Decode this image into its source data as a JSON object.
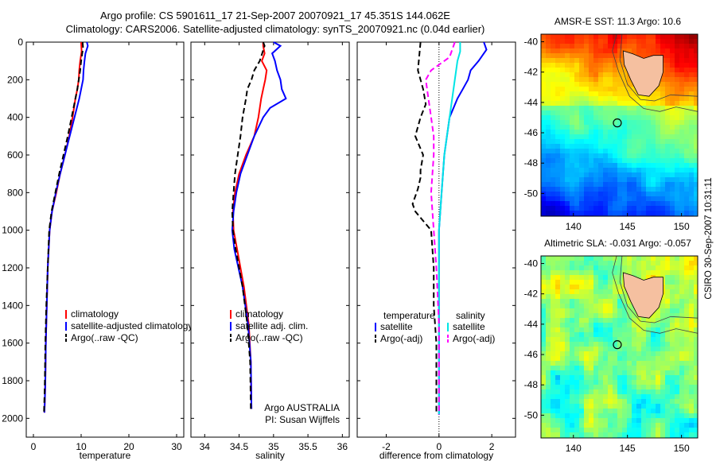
{
  "titles": {
    "line1": "Argo profile: CS 5901611_17 21-Sep-2007 20070921_17 45.351S 144.062E",
    "line2": "Climatology: CARS2006. Satellite-adjusted climatology: synTS_20070921.nc (0.04d earlier)"
  },
  "side_label": "CSIRO 30-Sep-2007 10:31:11",
  "colors": {
    "climatology": "#ff0000",
    "satellite": "#0000ff",
    "argo": "#000000",
    "sat_sal": "#00e5e5",
    "argo_sal": "#ff00ff",
    "land": "#f5c0a0"
  },
  "chart_data": [
    {
      "type": "line",
      "id": "temperature",
      "xlabel": "temperature",
      "ylabel": "",
      "xlim": [
        -1.5,
        31.5
      ],
      "ylim": [
        0,
        2100
      ],
      "y_reversed": true,
      "xticks": [
        0,
        10,
        20,
        30
      ],
      "yticks": [
        0,
        200,
        400,
        600,
        800,
        1000,
        1200,
        1400,
        1600,
        1800,
        2000
      ],
      "legend_position": "lower-right",
      "legend": [
        "climatology",
        "satellite-adjusted climatology",
        "Argo(..raw -QC)"
      ],
      "series": [
        {
          "name": "climatology",
          "color": "#ff0000",
          "style": "solid",
          "x": [
            10.0,
            10.1,
            9.8,
            9.6,
            9.5,
            9.2,
            8.8,
            8.2,
            7.5,
            6.6,
            5.6,
            4.8,
            3.9,
            3.4,
            3.0,
            2.8,
            2.6,
            2.5,
            2.4,
            2.3
          ],
          "y": [
            0,
            50,
            100,
            150,
            200,
            250,
            300,
            400,
            500,
            600,
            700,
            800,
            900,
            1000,
            1200,
            1400,
            1600,
            1800,
            1900,
            1970
          ]
        },
        {
          "name": "satellite-adjusted climatology",
          "color": "#0000ff",
          "style": "solid",
          "x": [
            11.2,
            11.4,
            10.9,
            10.7,
            10.5,
            10.4,
            10.0,
            9.6,
            8.6,
            7.6,
            6.6,
            5.6,
            4.7,
            3.9,
            3.4,
            3.0,
            2.8,
            2.6,
            2.5,
            2.4,
            2.3
          ],
          "y": [
            0,
            20,
            60,
            100,
            150,
            200,
            250,
            300,
            400,
            500,
            600,
            700,
            800,
            900,
            1000,
            1200,
            1400,
            1600,
            1800,
            1900,
            1970
          ]
        },
        {
          "name": "Argo(..raw -QC)",
          "color": "#000000",
          "style": "dashed",
          "x": [
            10.3,
            10.4,
            10.0,
            9.8,
            9.5,
            9.2,
            8.8,
            8.0,
            7.2,
            6.3,
            5.4,
            4.6,
            3.8,
            3.3,
            3.0,
            2.7,
            2.5,
            2.4,
            2.3,
            2.2
          ],
          "y": [
            0,
            30,
            100,
            150,
            200,
            250,
            300,
            400,
            500,
            600,
            700,
            800,
            900,
            1000,
            1200,
            1400,
            1600,
            1800,
            1900,
            1980
          ]
        }
      ]
    },
    {
      "type": "line",
      "id": "salinity",
      "xlabel": "salinity",
      "ylabel": "",
      "xlim": [
        33.8,
        36.1
      ],
      "ylim": [
        0,
        2100
      ],
      "y_reversed": true,
      "xticks": [
        34,
        34.5,
        35,
        35.5,
        36
      ],
      "yticks": [
        0,
        200,
        400,
        600,
        800,
        1000,
        1200,
        1400,
        1600,
        1800,
        2000
      ],
      "legend_position": "lower-right",
      "legend": [
        "climatology",
        "satellite adj. clim.",
        "Argo(..raw -QC)"
      ],
      "annotations": [
        "Argo AUSTRALIA",
        "PI: Susan Wijffels"
      ],
      "series": [
        {
          "name": "climatology",
          "color": "#ff0000",
          "style": "solid",
          "x": [
            34.85,
            34.85,
            34.87,
            34.83,
            34.9,
            34.88,
            34.85,
            34.82,
            34.78,
            34.72,
            34.6,
            34.5,
            34.44,
            34.41,
            34.42,
            34.47,
            34.57,
            34.64,
            34.67,
            34.68
          ],
          "y": [
            0,
            20,
            60,
            100,
            150,
            200,
            250,
            300,
            400,
            500,
            600,
            700,
            800,
            900,
            1000,
            1100,
            1300,
            1500,
            1700,
            1950
          ]
        },
        {
          "name": "satellite adj. clim.",
          "color": "#0000ff",
          "style": "solid",
          "x": [
            35.0,
            35.1,
            34.98,
            35.02,
            35.05,
            35.1,
            35.12,
            35.18,
            34.95,
            34.85,
            34.72,
            34.62,
            34.52,
            34.46,
            34.42,
            34.4,
            34.43,
            34.55,
            34.63,
            34.67,
            34.68
          ],
          "y": [
            0,
            20,
            60,
            100,
            150,
            200,
            250,
            300,
            350,
            400,
            500,
            600,
            700,
            800,
            900,
            1000,
            1100,
            1300,
            1500,
            1700,
            1950
          ]
        },
        {
          "name": "Argo(..raw -QC)",
          "color": "#000000",
          "style": "dashed",
          "x": [
            34.85,
            34.87,
            34.8,
            34.72,
            34.68,
            34.62,
            34.6,
            34.55,
            34.52,
            34.48,
            34.44,
            34.42,
            34.4,
            34.41,
            34.45,
            34.55,
            34.62,
            34.66,
            34.67
          ],
          "y": [
            0,
            20,
            100,
            150,
            200,
            250,
            300,
            400,
            500,
            600,
            700,
            800,
            900,
            1000,
            1100,
            1300,
            1500,
            1700,
            1950
          ]
        }
      ]
    },
    {
      "type": "line",
      "id": "difference",
      "xlabel": "difference from climatology",
      "ylabel": "",
      "xlim": [
        -3.1,
        2.9
      ],
      "ylim": [
        0,
        2100
      ],
      "y_reversed": true,
      "xticks": [
        -2,
        0,
        2
      ],
      "yticks": [
        0,
        200,
        400,
        600,
        800,
        1000,
        1200,
        1400,
        1600,
        1800,
        2000
      ],
      "legend_position": "lower-right",
      "legend_headers": [
        "temperature",
        "salinity"
      ],
      "legend": [
        "satellite",
        "Argo(-adj)",
        "satellite",
        "Argo(-adj)"
      ],
      "series": [
        {
          "name": "satellite",
          "group": "temperature",
          "color": "#0000ff",
          "style": "solid",
          "x": [
            1.7,
            1.8,
            1.5,
            1.2,
            1.1,
            0.9,
            0.7,
            0.4,
            0.3,
            0.2,
            0.1,
            0.0,
            0.0,
            0.0,
            0.0,
            0.0
          ],
          "y": [
            0,
            40,
            100,
            150,
            200,
            250,
            300,
            400,
            500,
            600,
            800,
            1000,
            1200,
            1500,
            1800,
            1980
          ]
        },
        {
          "name": "Argo(-adj)",
          "group": "temperature",
          "color": "#000000",
          "style": "dashed",
          "x": [
            -0.7,
            -0.8,
            -0.6,
            -0.5,
            -0.7,
            -0.9,
            -0.6,
            -0.7,
            -0.7,
            -0.8,
            -1.0,
            -0.9,
            -0.3,
            -0.2,
            -0.2,
            -0.1,
            -0.1,
            -0.1
          ],
          "y": [
            0,
            150,
            250,
            330,
            400,
            500,
            600,
            680,
            720,
            780,
            860,
            900,
            1000,
            1200,
            1400,
            1600,
            1800,
            1980
          ]
        },
        {
          "name": "satellite",
          "group": "salinity",
          "color": "#00e5e5",
          "style": "solid",
          "x": [
            0.8,
            0.8,
            0.7,
            0.6,
            0.5,
            0.4,
            0.3,
            0.2,
            0.1,
            0.0,
            0.0,
            0.0,
            0.0,
            0.0
          ],
          "y": [
            0,
            50,
            100,
            200,
            300,
            400,
            500,
            600,
            800,
            1000,
            1200,
            1500,
            1800,
            1980
          ]
        },
        {
          "name": "Argo(-adj)",
          "group": "salinity",
          "color": "#ff00ff",
          "style": "dashed",
          "x": [
            0.6,
            0.5,
            0.4,
            -0.3,
            -0.5,
            -0.4,
            -0.3,
            -0.2,
            -0.2,
            -0.3,
            -0.2,
            -0.1,
            0.0,
            0.0,
            0.0
          ],
          "y": [
            0,
            40,
            80,
            150,
            200,
            300,
            400,
            500,
            600,
            800,
            1000,
            1200,
            1500,
            1800,
            1980
          ]
        }
      ]
    },
    {
      "type": "heatmap",
      "id": "sst",
      "title": "AMSR-E SST: 11.3  Argo: 10.6",
      "xlim": [
        137,
        151.5
      ],
      "ylim": [
        -51.5,
        -39.5
      ],
      "xticks": [
        140,
        145,
        150
      ],
      "yticks": [
        -40,
        -42,
        -44,
        -46,
        -48,
        -50
      ],
      "marker": {
        "lon": 144.062,
        "lat": -45.351
      }
    },
    {
      "type": "heatmap",
      "id": "sla",
      "title": "Altimetric SLA: -0.031  Argo: -0.057",
      "xlim": [
        137,
        151.5
      ],
      "ylim": [
        -51.5,
        -39.5
      ],
      "xticks": [
        140,
        145,
        150
      ],
      "yticks": [
        -40,
        -42,
        -44,
        -46,
        -48,
        -50
      ],
      "marker": {
        "lon": 144.062,
        "lat": -45.351
      }
    }
  ]
}
